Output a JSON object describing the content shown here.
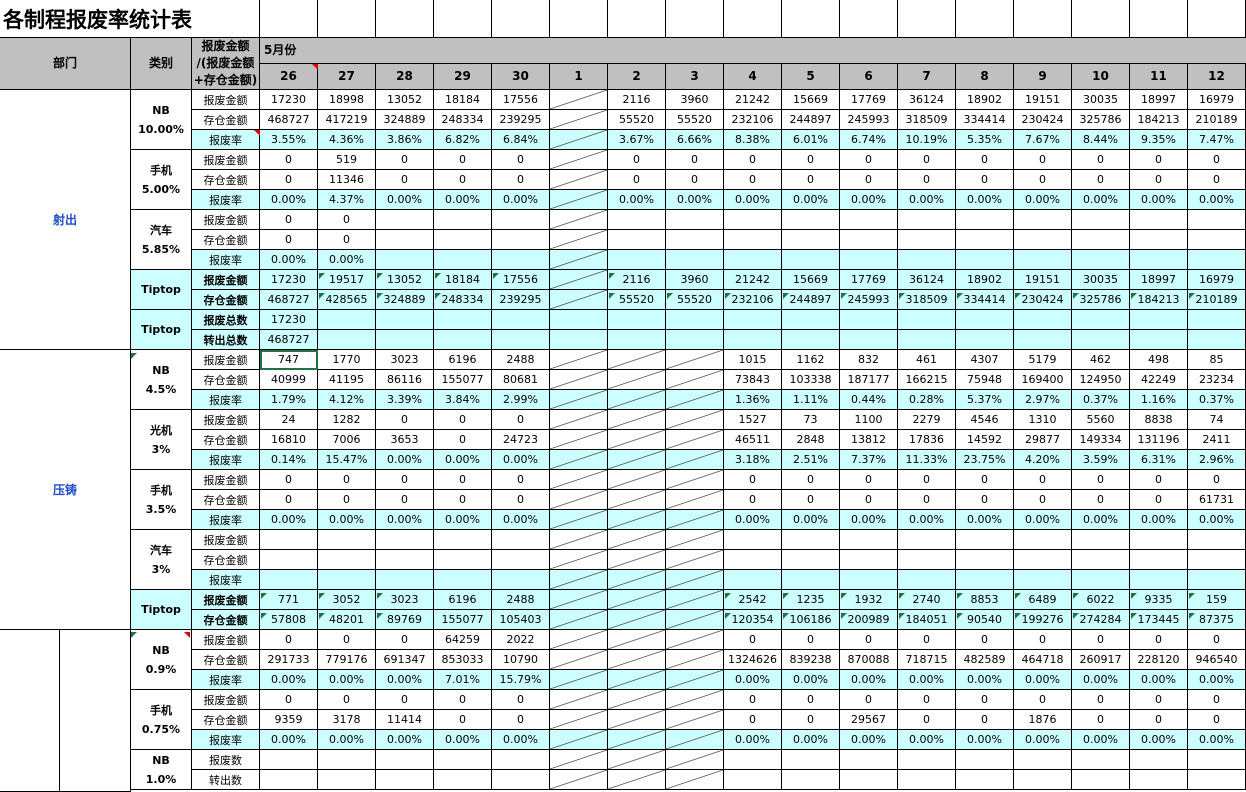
{
  "title": "各制程报废率统计表",
  "header": {
    "dept": "部门",
    "category": "类别",
    "metric": "报废金额\n/(报废金额\n+存仓金额)",
    "month": "5月份"
  },
  "days": [
    "26",
    "27",
    "28",
    "29",
    "30",
    "1",
    "2",
    "3",
    "4",
    "5",
    "6",
    "7",
    "8",
    "9",
    "10",
    "11",
    "12"
  ],
  "labels": {
    "scrap_amount": "报废金额",
    "stock_amount": "存仓金额",
    "scrap_rate": "报废率",
    "scrap_total": "报废总数",
    "transfer_total": "转出总数",
    "scrap_count": "报废数",
    "transfer_count": "转出数",
    "tiptop": "Tiptop"
  },
  "departments": {
    "injection": "射出",
    "diecast": "压铸"
  },
  "rows": [
    {
      "cat": "NB\n10.00%",
      "lbl": "报废金额",
      "v": [
        "17230",
        "18998",
        "13052",
        "18184",
        "17556",
        "/",
        "2116",
        "3960",
        "21242",
        "15669",
        "17769",
        "36124",
        "18902",
        "19151",
        "30035",
        "18997",
        "16979"
      ]
    },
    {
      "lbl": "存仓金额",
      "v": [
        "468727",
        "417219",
        "324889",
        "248334",
        "239295",
        "/",
        "55520",
        "55520",
        "232106",
        "244897",
        "245993",
        "318509",
        "334414",
        "230424",
        "325786",
        "184213",
        "210189"
      ]
    },
    {
      "lbl": "报废率",
      "v": [
        "3.55%",
        "4.36%",
        "3.86%",
        "6.82%",
        "6.84%",
        "/",
        "3.67%",
        "6.66%",
        "8.38%",
        "6.01%",
        "6.74%",
        "10.19%",
        "5.35%",
        "7.67%",
        "8.44%",
        "9.35%",
        "7.47%"
      ]
    },
    {
      "cat": "手机\n5.00%",
      "lbl": "报废金额",
      "v": [
        "0",
        "519",
        "0",
        "0",
        "0",
        "/",
        "0",
        "0",
        "0",
        "0",
        "0",
        "0",
        "0",
        "0",
        "0",
        "0",
        "0"
      ]
    },
    {
      "lbl": "存仓金额",
      "v": [
        "0",
        "11346",
        "0",
        "0",
        "0",
        "/",
        "0",
        "0",
        "0",
        "0",
        "0",
        "0",
        "0",
        "0",
        "0",
        "0",
        "0"
      ]
    },
    {
      "lbl": "报废率",
      "v": [
        "0.00%",
        "4.37%",
        "0.00%",
        "0.00%",
        "0.00%",
        "/",
        "0.00%",
        "0.00%",
        "0.00%",
        "0.00%",
        "0.00%",
        "0.00%",
        "0.00%",
        "0.00%",
        "0.00%",
        "0.00%",
        "0.00%"
      ]
    },
    {
      "cat": "汽车\n5.85%",
      "lbl": "报废金额",
      "v": [
        "0",
        "0",
        "",
        "",
        "",
        "/",
        "",
        "",
        "",
        "",
        "",
        "",
        "",
        "",
        "",
        "",
        ""
      ]
    },
    {
      "lbl": "存仓金额",
      "v": [
        "0",
        "0",
        "",
        "",
        "",
        "/",
        "",
        "",
        "",
        "",
        "",
        "",
        "",
        "",
        "",
        "",
        ""
      ]
    },
    {
      "lbl": "报废率",
      "v": [
        "0.00%",
        "0.00%",
        "",
        "",
        "",
        "/",
        "",
        "",
        "",
        "",
        "",
        "",
        "",
        "",
        "",
        "",
        ""
      ]
    },
    {
      "cat": "Tiptop",
      "lbl": "报废金额",
      "v": [
        "17230",
        "19517",
        "13052",
        "18184",
        "17556",
        "/",
        "2116",
        "3960",
        "21242",
        "15669",
        "17769",
        "36124",
        "18902",
        "19151",
        "30035",
        "18997",
        "16979"
      ]
    },
    {
      "lbl": "存仓金额",
      "v": [
        "468727",
        "428565",
        "324889",
        "248334",
        "239295",
        "/",
        "55520",
        "55520",
        "232106",
        "244897",
        "245993",
        "318509",
        "334414",
        "230424",
        "325786",
        "184213",
        "210189"
      ]
    },
    {
      "cat": "Tiptop",
      "lbl": "报废总数",
      "v": [
        "17230",
        "",
        "",
        "",
        "",
        "",
        "",
        "",
        "",
        "",
        "",
        "",
        "",
        "",
        "",
        "",
        ""
      ]
    },
    {
      "lbl": "转出总数",
      "v": [
        "468727",
        "",
        "",
        "",
        "",
        "",
        "",
        "",
        "",
        "",
        "",
        "",
        "",
        "",
        "",
        "",
        ""
      ]
    },
    {
      "cat": "NB\n4.5%",
      "lbl": "报废金额",
      "v": [
        "747",
        "1770",
        "3023",
        "6196",
        "2488",
        "/",
        "/",
        "/",
        "1015",
        "1162",
        "832",
        "461",
        "4307",
        "5179",
        "462",
        "498",
        "85"
      ]
    },
    {
      "lbl": "存仓金额",
      "v": [
        "40999",
        "41195",
        "86116",
        "155077",
        "80681",
        "/",
        "/",
        "/",
        "73843",
        "103338",
        "187177",
        "166215",
        "75948",
        "169400",
        "124950",
        "42249",
        "23234"
      ]
    },
    {
      "lbl": "报废率",
      "v": [
        "1.79%",
        "4.12%",
        "3.39%",
        "3.84%",
        "2.99%",
        "/",
        "/",
        "/",
        "1.36%",
        "1.11%",
        "0.44%",
        "0.28%",
        "5.37%",
        "2.97%",
        "0.37%",
        "1.16%",
        "0.37%"
      ]
    },
    {
      "cat": "光机\n3%",
      "lbl": "报废金额",
      "v": [
        "24",
        "1282",
        "0",
        "0",
        "0",
        "/",
        "/",
        "/",
        "1527",
        "73",
        "1100",
        "2279",
        "4546",
        "1310",
        "5560",
        "8838",
        "74"
      ]
    },
    {
      "lbl": "存仓金额",
      "v": [
        "16810",
        "7006",
        "3653",
        "0",
        "24723",
        "/",
        "/",
        "/",
        "46511",
        "2848",
        "13812",
        "17836",
        "14592",
        "29877",
        "149334",
        "131196",
        "2411"
      ]
    },
    {
      "lbl": "报废率",
      "v": [
        "0.14%",
        "15.47%",
        "0.00%",
        "0.00%",
        "0.00%",
        "/",
        "/",
        "/",
        "3.18%",
        "2.51%",
        "7.37%",
        "11.33%",
        "23.75%",
        "4.20%",
        "3.59%",
        "6.31%",
        "2.96%"
      ]
    },
    {
      "cat": "手机\n3.5%",
      "lbl": "报废金额",
      "v": [
        "0",
        "0",
        "0",
        "0",
        "0",
        "/",
        "/",
        "/",
        "0",
        "0",
        "0",
        "0",
        "0",
        "0",
        "0",
        "0",
        "0"
      ]
    },
    {
      "lbl": "存仓金额",
      "v": [
        "0",
        "0",
        "0",
        "0",
        "0",
        "/",
        "/",
        "/",
        "0",
        "0",
        "0",
        "0",
        "0",
        "0",
        "0",
        "0",
        "61731"
      ]
    },
    {
      "lbl": "报废率",
      "v": [
        "0.00%",
        "0.00%",
        "0.00%",
        "0.00%",
        "0.00%",
        "/",
        "/",
        "/",
        "0.00%",
        "0.00%",
        "0.00%",
        "0.00%",
        "0.00%",
        "0.00%",
        "0.00%",
        "0.00%",
        "0.00%"
      ]
    },
    {
      "cat": "汽车\n3%",
      "lbl": "报废金额",
      "v": [
        "",
        "",
        "",
        "",
        "",
        "/",
        "/",
        "/",
        "",
        "",
        "",
        "",
        "",
        "",
        "",
        "",
        ""
      ]
    },
    {
      "lbl": "存仓金额",
      "v": [
        "",
        "",
        "",
        "",
        "",
        "/",
        "/",
        "/",
        "",
        "",
        "",
        "",
        "",
        "",
        "",
        "",
        ""
      ]
    },
    {
      "lbl": "报废率",
      "v": [
        "",
        "",
        "",
        "",
        "",
        "/",
        "/",
        "/",
        "",
        "",
        "",
        "",
        "",
        "",
        "",
        "",
        ""
      ]
    },
    {
      "cat": "Tiptop",
      "lbl": "报废金额",
      "v": [
        "771",
        "3052",
        "3023",
        "6196",
        "2488",
        "/",
        "/",
        "/",
        "2542",
        "1235",
        "1932",
        "2740",
        "8853",
        "6489",
        "6022",
        "9335",
        "159"
      ]
    },
    {
      "lbl": "存仓金额",
      "v": [
        "57808",
        "48201",
        "89769",
        "155077",
        "105403",
        "/",
        "/",
        "/",
        "120354",
        "106186",
        "200989",
        "184051",
        "90540",
        "199276",
        "274284",
        "173445",
        "87375"
      ]
    },
    {
      "cat": "NB\n0.9%",
      "lbl": "报废金额",
      "v": [
        "0",
        "0",
        "0",
        "64259",
        "2022",
        "/",
        "/",
        "/",
        "0",
        "0",
        "0",
        "0",
        "0",
        "0",
        "0",
        "0",
        "0"
      ]
    },
    {
      "lbl": "存仓金额",
      "v": [
        "291733",
        "779176",
        "691347",
        "853033",
        "10790",
        "/",
        "/",
        "/",
        "1324626",
        "839238",
        "870088",
        "718715",
        "482589",
        "464718",
        "260917",
        "228120",
        "946540"
      ]
    },
    {
      "lbl": "报废率",
      "v": [
        "0.00%",
        "0.00%",
        "0.00%",
        "7.01%",
        "15.79%",
        "/",
        "/",
        "/",
        "0.00%",
        "0.00%",
        "0.00%",
        "0.00%",
        "0.00%",
        "0.00%",
        "0.00%",
        "0.00%",
        "0.00%"
      ]
    },
    {
      "cat": "手机\n0.75%",
      "lbl": "报废金额",
      "v": [
        "0",
        "0",
        "0",
        "0",
        "0",
        "/",
        "/",
        "/",
        "0",
        "0",
        "0",
        "0",
        "0",
        "0",
        "0",
        "0",
        "0"
      ]
    },
    {
      "lbl": "存仓金额",
      "v": [
        "9359",
        "3178",
        "11414",
        "0",
        "0",
        "/",
        "/",
        "/",
        "0",
        "0",
        "29567",
        "0",
        "0",
        "1876",
        "0",
        "0",
        "0"
      ]
    },
    {
      "lbl": "报废率",
      "v": [
        "0.00%",
        "0.00%",
        "0.00%",
        "0.00%",
        "0.00%",
        "/",
        "/",
        "/",
        "0.00%",
        "0.00%",
        "0.00%",
        "0.00%",
        "0.00%",
        "0.00%",
        "0.00%",
        "0.00%",
        "0.00%"
      ]
    },
    {
      "cat": "NB\n1.0%",
      "lbl": "报废数",
      "v": [
        "",
        "",
        "",
        "",
        "",
        "/",
        "/",
        "/",
        "",
        "",
        "",
        "",
        "",
        "",
        "",
        "",
        ""
      ]
    },
    {
      "lbl": "转出数",
      "v": [
        "",
        "",
        "",
        "",
        "",
        "/",
        "/",
        "/",
        "",
        "",
        "",
        "",
        "",
        "",
        "",
        "",
        ""
      ]
    }
  ]
}
